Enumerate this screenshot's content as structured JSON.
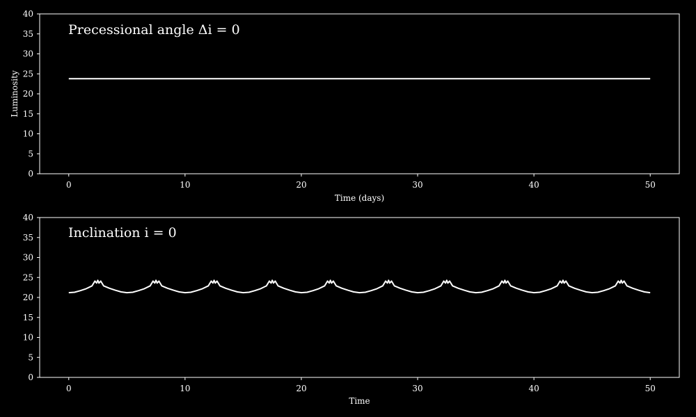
{
  "chart_data": [
    {
      "type": "line",
      "title": "Precessional angle Δi = 0",
      "xlabel": "Time (days)",
      "ylabel": "Luminosity",
      "xlim": [
        -2.5,
        52.5
      ],
      "ylim": [
        0,
        40
      ],
      "xticks": [
        0,
        10,
        20,
        30,
        40,
        50
      ],
      "yticks": [
        0,
        5,
        10,
        15,
        20,
        25,
        30,
        35,
        40
      ],
      "grid": false,
      "colors": {
        "background": "#000000",
        "foreground": "#ffffff",
        "line": "#ffffff"
      },
      "series": [
        {
          "x": [
            0,
            50
          ],
          "y": [
            23.8,
            23.8
          ]
        }
      ]
    },
    {
      "type": "line",
      "title": "Inclination i = 0",
      "xlabel": "Time",
      "ylabel": "",
      "xlim": [
        -2.5,
        52.5
      ],
      "ylim": [
        0,
        40
      ],
      "xticks": [
        0,
        10,
        20,
        30,
        40,
        50
      ],
      "yticks": [
        0,
        5,
        10,
        15,
        20,
        25,
        30,
        35,
        40
      ],
      "grid": false,
      "colors": {
        "background": "#000000",
        "foreground": "#ffffff",
        "line": "#ffffff"
      },
      "series": [
        {
          "x": [
            0,
            0.5,
            1,
            1.5,
            2,
            2.25,
            2.4,
            2.5,
            2.6,
            2.75,
            3,
            3.5,
            4,
            4.5,
            5,
            5.5,
            6,
            6.5,
            7,
            7.25,
            7.4,
            7.5,
            7.6,
            7.75,
            8,
            8.5,
            9,
            9.5,
            10,
            10.5,
            11,
            11.5,
            12,
            12.25,
            12.4,
            12.5,
            12.6,
            12.75,
            13,
            13.5,
            14,
            14.5,
            15,
            15.5,
            16,
            16.5,
            17,
            17.25,
            17.4,
            17.5,
            17.6,
            17.75,
            18,
            18.5,
            19,
            19.5,
            20,
            20.5,
            21,
            21.5,
            22,
            22.25,
            22.4,
            22.5,
            22.6,
            22.75,
            23,
            23.5,
            24,
            24.5,
            25,
            25.5,
            26,
            26.5,
            27,
            27.25,
            27.4,
            27.5,
            27.6,
            27.75,
            28,
            28.5,
            29,
            29.5,
            30,
            30.5,
            31,
            31.5,
            32,
            32.25,
            32.4,
            32.5,
            32.6,
            32.75,
            33,
            33.5,
            34,
            34.5,
            35,
            35.5,
            36,
            36.5,
            37,
            37.25,
            37.4,
            37.5,
            37.6,
            37.75,
            38,
            38.5,
            39,
            39.5,
            40,
            40.5,
            41,
            41.5,
            42,
            42.25,
            42.4,
            42.5,
            42.6,
            42.75,
            43,
            43.5,
            44,
            44.5,
            45,
            45.5,
            46,
            46.5,
            47,
            47.25,
            47.4,
            47.5,
            47.6,
            47.75,
            48,
            48.5,
            49,
            49.5,
            50
          ],
          "y": [
            21.2,
            21.3,
            21.7,
            22.2,
            22.9,
            24.1,
            23.6,
            24.3,
            23.6,
            24.1,
            22.9,
            22.3,
            21.8,
            21.4,
            21.2,
            21.3,
            21.7,
            22.2,
            22.9,
            24.1,
            23.6,
            24.3,
            23.6,
            24.1,
            22.9,
            22.3,
            21.8,
            21.4,
            21.2,
            21.3,
            21.7,
            22.2,
            22.9,
            24.1,
            23.6,
            24.3,
            23.6,
            24.1,
            22.9,
            22.3,
            21.8,
            21.4,
            21.2,
            21.3,
            21.7,
            22.2,
            22.9,
            24.1,
            23.6,
            24.3,
            23.6,
            24.1,
            22.9,
            22.3,
            21.8,
            21.4,
            21.2,
            21.3,
            21.7,
            22.2,
            22.9,
            24.1,
            23.6,
            24.3,
            23.6,
            24.1,
            22.9,
            22.3,
            21.8,
            21.4,
            21.2,
            21.3,
            21.7,
            22.2,
            22.9,
            24.1,
            23.6,
            24.3,
            23.6,
            24.1,
            22.9,
            22.3,
            21.8,
            21.4,
            21.2,
            21.3,
            21.7,
            22.2,
            22.9,
            24.1,
            23.6,
            24.3,
            23.6,
            24.1,
            22.9,
            22.3,
            21.8,
            21.4,
            21.2,
            21.3,
            21.7,
            22.2,
            22.9,
            24.1,
            23.6,
            24.3,
            23.6,
            24.1,
            22.9,
            22.3,
            21.8,
            21.4,
            21.2,
            21.3,
            21.7,
            22.2,
            22.9,
            24.1,
            23.6,
            24.3,
            23.6,
            24.1,
            22.9,
            22.3,
            21.8,
            21.4,
            21.2,
            21.3,
            21.7,
            22.2,
            22.9,
            24.1,
            23.6,
            24.3,
            23.6,
            24.1,
            22.9,
            22.3,
            21.8,
            21.4,
            21.2
          ]
        }
      ]
    }
  ]
}
